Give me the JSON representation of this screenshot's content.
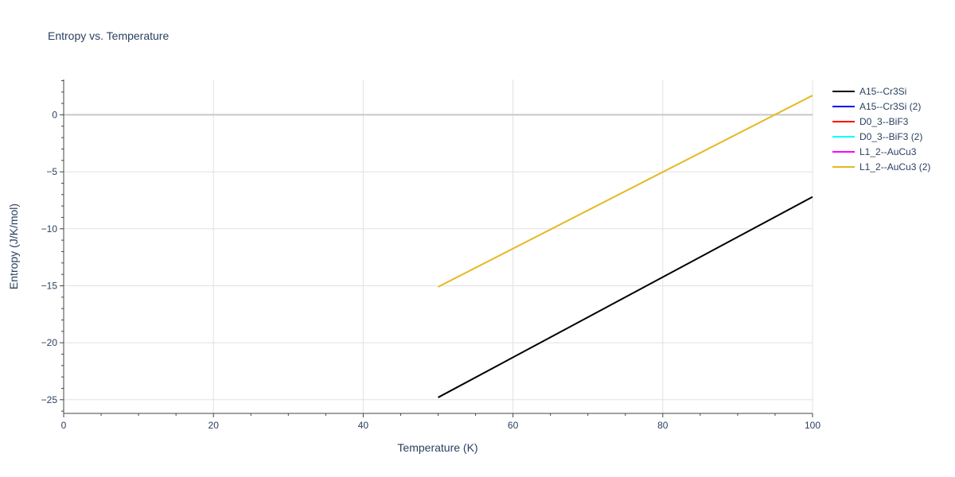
{
  "chart_data": {
    "type": "line",
    "title": "Entropy vs. Temperature",
    "xlabel": "Temperature (K)",
    "ylabel": "Entropy (J/K/mol)",
    "xlim": [
      0,
      100
    ],
    "ylim": [
      -26.2,
      3.1
    ],
    "x_ticks": [
      0,
      20,
      40,
      60,
      80,
      100
    ],
    "y_ticks": [
      0,
      -5,
      -10,
      -15,
      -20,
      -25
    ],
    "x_tick_labels": [
      "0",
      "20",
      "40",
      "60",
      "80",
      "100"
    ],
    "y_tick_labels": [
      "0",
      "−5",
      "−10",
      "−15",
      "−20",
      "−25"
    ],
    "grid": true,
    "legend_position": "top-right outside",
    "series": [
      {
        "name": "A15--Cr3Si",
        "color": "#000000",
        "x": [
          50,
          100
        ],
        "y": [
          -24.8,
          -7.2
        ]
      },
      {
        "name": "A15--Cr3Si (2)",
        "color": "#0000ff",
        "x": [],
        "y": []
      },
      {
        "name": "D0_3--BiF3",
        "color": "#ff0000",
        "x": [],
        "y": []
      },
      {
        "name": "D0_3--BiF3 (2)",
        "color": "#00ffff",
        "x": [],
        "y": []
      },
      {
        "name": "L1_2--AuCu3",
        "color": "#ff00ff",
        "x": [],
        "y": []
      },
      {
        "name": "L1_2--AuCu3 (2)",
        "color": "#e6b822",
        "x": [
          50,
          100
        ],
        "y": [
          -15.1,
          1.7
        ]
      }
    ]
  }
}
